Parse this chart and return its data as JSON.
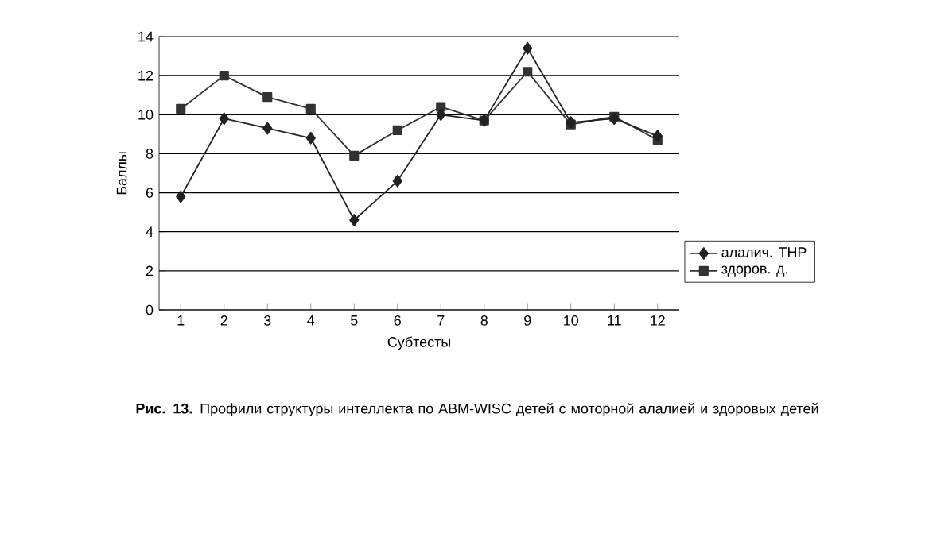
{
  "chart_data": {
    "type": "line",
    "categories": [
      "1",
      "2",
      "3",
      "4",
      "5",
      "6",
      "7",
      "8",
      "9",
      "10",
      "11",
      "12"
    ],
    "series": [
      {
        "name": "алалич. ТНР",
        "color": "#222222",
        "marker": "diamond",
        "values": [
          5.8,
          9.8,
          9.3,
          8.8,
          4.6,
          6.6,
          10.0,
          9.7,
          13.4,
          9.6,
          9.8,
          8.9
        ]
      },
      {
        "name": "здоров. д.",
        "color": "#333333",
        "marker": "square",
        "values": [
          10.3,
          12.0,
          10.9,
          10.3,
          7.9,
          9.2,
          10.4,
          9.7,
          12.2,
          9.5,
          9.9,
          8.7
        ]
      }
    ],
    "xlabel": "Субтесты",
    "ylabel": "Баллы",
    "ylim": [
      0,
      14
    ],
    "yticks": [
      0,
      2,
      4,
      6,
      8,
      10,
      12,
      14
    ],
    "grid": "y",
    "legend": "right",
    "line_style": "solid",
    "annotations": [
      "**Рис. 13.** Профили структуры интеллекта по АВМ-WISC детей с моторной алалией и здоровых детей"
    ]
  }
}
